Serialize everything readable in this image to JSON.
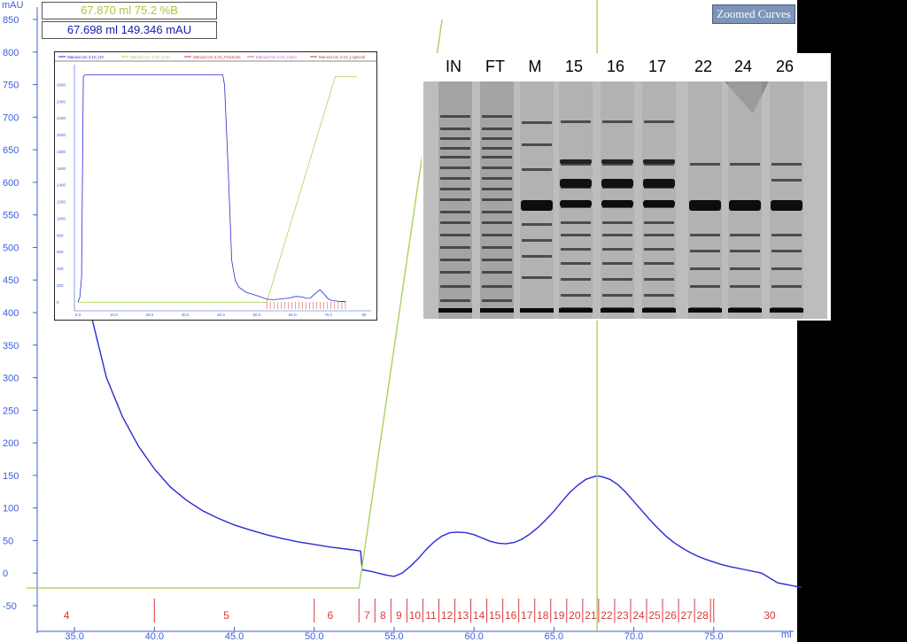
{
  "info": {
    "line1": "67.870 ml 75.2 %B",
    "line2": "67.698 ml 149.346 mAU"
  },
  "toolbar": {
    "zoom_label": "Zoomed Curves"
  },
  "colors": {
    "uv": "#2a2ad6",
    "conc": "#a8d45a",
    "fraction": "#d63a3a",
    "axis": "#3b5fd6",
    "gel_bg": "#bdbdbd"
  },
  "chart_data": {
    "type": "line",
    "ylabel": "mAU",
    "xlabel": "ml",
    "xlim": [
      32,
      80
    ],
    "ylim": [
      -65,
      850
    ],
    "x_ticks": [
      "35.0",
      "40.0",
      "45.0",
      "50.0",
      "55.0",
      "60.0",
      "65.0",
      "70.0",
      "75.0"
    ],
    "x_tick_values": [
      35,
      40,
      45,
      50,
      55,
      60,
      65,
      70,
      75
    ],
    "y_ticks": [
      -50,
      0,
      50,
      100,
      150,
      200,
      250,
      300,
      350,
      400,
      450,
      500,
      550,
      600,
      650,
      700,
      750,
      800,
      850
    ],
    "series": [
      {
        "id": "uv",
        "x": [
          36.0,
          37,
          38,
          39,
          40,
          41,
          42,
          43,
          44,
          45,
          46,
          47,
          48,
          49,
          50,
          51,
          52,
          52.9,
          53.0,
          53.5,
          54,
          54.5,
          55,
          55.5,
          56,
          56.5,
          57,
          57.5,
          58,
          58.5,
          59,
          59.5,
          60,
          60.5,
          61,
          61.5,
          62,
          62.5,
          63,
          63.5,
          64,
          64.5,
          65,
          65.5,
          66,
          66.5,
          67,
          67.5,
          67.7,
          68,
          68.5,
          69,
          69.5,
          70,
          70.5,
          71,
          71.5,
          72,
          72.5,
          73,
          73.5,
          74,
          74.5,
          75,
          75.5,
          76,
          77,
          78,
          79,
          80.5
        ],
        "y": [
          400,
          300,
          240,
          195,
          160,
          132,
          112,
          96,
          84,
          74,
          66,
          59,
          53,
          48,
          44,
          40,
          37,
          34,
          5,
          3,
          0,
          -3,
          -5,
          0,
          10,
          22,
          36,
          48,
          57,
          62,
          63,
          62,
          59,
          54,
          49,
          46,
          45,
          47,
          52,
          60,
          70,
          82,
          95,
          110,
          124,
          135,
          144,
          148,
          149.3,
          148,
          144,
          136,
          124,
          110,
          96,
          82,
          69,
          57,
          47,
          39,
          32,
          26,
          21,
          17,
          13,
          10,
          5,
          0,
          -15,
          -22
        ]
      },
      {
        "id": "conc",
        "x": [
          32,
          52.8,
          58
        ],
        "y": [
          -23,
          -23,
          850
        ]
      }
    ],
    "cursor_x": 67.7,
    "fractions": {
      "labels": [
        "4",
        "5",
        "6",
        "7",
        "8",
        "9",
        "10",
        "11",
        "12",
        "13",
        "14",
        "15",
        "16",
        "17",
        "18",
        "19",
        "20",
        "21",
        "22",
        "23",
        "24",
        "25",
        "26",
        "27",
        "28",
        "30"
      ],
      "label_x": [
        34.5,
        44.5,
        51.0,
        53.3,
        54.3,
        55.3,
        56.3,
        57.3,
        58.3,
        59.3,
        60.3,
        61.3,
        62.3,
        63.3,
        64.3,
        65.3,
        66.3,
        67.3,
        68.3,
        69.3,
        70.3,
        71.3,
        72.3,
        73.3,
        74.3,
        78.5
      ],
      "marks": [
        40,
        50,
        52.8,
        53.8,
        54.8,
        55.8,
        56.8,
        57.8,
        58.8,
        59.8,
        60.8,
        61.8,
        62.8,
        63.8,
        64.8,
        65.8,
        66.8,
        67.8,
        68.8,
        69.8,
        70.8,
        71.8,
        72.8,
        73.8,
        74.8,
        75.0
      ]
    },
    "inset": {
      "type": "line",
      "legend": [
        "Manual run 4:10_UV",
        "Manual run 4:10_Conc",
        "Manual run 4:10_Fractions",
        "Manual run 4:10_Inject",
        "Manual run 4:10_Logbook"
      ],
      "x_ticks": [
        "0.0",
        "10.0",
        "20.0",
        "30.0",
        "40.0",
        "50.0",
        "60.0",
        "70.0",
        "80"
      ],
      "x_tick_values": [
        0,
        10,
        20,
        30,
        40,
        50,
        60,
        70,
        80
      ],
      "y_ticks": [
        0,
        200,
        400,
        600,
        800,
        1000,
        1200,
        1400,
        1600,
        1800,
        2000,
        2200,
        2400,
        2600
      ],
      "xlim": [
        -1,
        82
      ],
      "ylim": [
        -50,
        2800
      ],
      "uv_x": [
        0,
        0.5,
        1,
        1.5,
        2,
        40.5,
        41,
        42,
        43,
        44,
        45,
        47,
        50,
        52,
        53,
        55,
        57,
        59,
        61,
        63,
        64,
        65,
        66,
        67.7,
        69,
        70,
        71,
        73,
        75
      ],
      "uv_y": [
        0,
        60,
        300,
        2700,
        2720,
        2720,
        2600,
        1600,
        500,
        260,
        180,
        120,
        80,
        50,
        35,
        30,
        40,
        50,
        70,
        60,
        45,
        50,
        90,
        149,
        90,
        40,
        20,
        10,
        5
      ],
      "conc_x": [
        0,
        52.8,
        72,
        78
      ],
      "conc_y": [
        0,
        0,
        2700,
        2700
      ]
    },
    "gel_lanes": [
      "IN",
      "FT",
      "M",
      "15",
      "16",
      "17",
      "22",
      "24",
      "26"
    ]
  }
}
